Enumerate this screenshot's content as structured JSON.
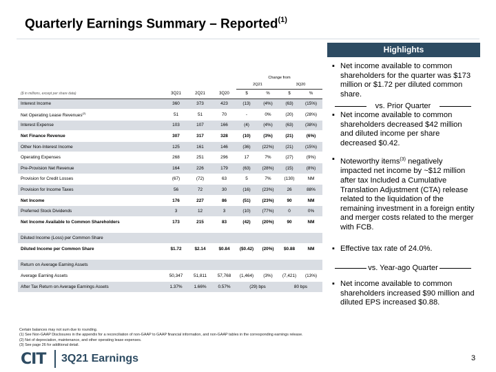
{
  "page": {
    "title": "Quarterly Earnings Summary – Reported",
    "title_sup": "(1)"
  },
  "table": {
    "units_label": "($ in millions, except per share data)",
    "change_from_label": "Change from",
    "group_labels": [
      "2Q21",
      "3Q20"
    ],
    "columns": [
      "3Q21",
      "2Q21",
      "3Q20"
    ],
    "sub_labels": [
      "$",
      "%",
      "$",
      "%"
    ],
    "rows": [
      {
        "label": "Interest Income",
        "sup": "",
        "cells": [
          "360",
          "373",
          "423",
          "(13)",
          "(4%)",
          "(63)",
          "(15%)"
        ],
        "bold": false,
        "shaded": true
      },
      {
        "label": "Net Operating Lease Revenues",
        "sup": "(2)",
        "cells": [
          "51",
          "51",
          "70",
          "-",
          "0%",
          "(20)",
          "(28%)"
        ],
        "bold": false,
        "shaded": false
      },
      {
        "label": "Interest Expense",
        "sup": "",
        "cells": [
          "103",
          "107",
          "166",
          "(4)",
          "(4%)",
          "(63)",
          "(38%)"
        ],
        "bold": false,
        "shaded": true
      },
      {
        "label": "Net Finance Revenue",
        "sup": "",
        "cells": [
          "307",
          "317",
          "328",
          "(10)",
          "(3%)",
          "(21)",
          "(6%)"
        ],
        "bold": true,
        "shaded": false
      },
      {
        "label": "Other Non-Interest Income",
        "sup": "",
        "cells": [
          "125",
          "161",
          "146",
          "(36)",
          "(22%)",
          "(21)",
          "(15%)"
        ],
        "bold": false,
        "shaded": true
      },
      {
        "label": "Operating Expenses",
        "sup": "",
        "cells": [
          "268",
          "251",
          "296",
          "17",
          "7%",
          "(27)",
          "(9%)"
        ],
        "bold": false,
        "shaded": false
      },
      {
        "label": "Pre-Provision Net Revenue",
        "sup": "",
        "cells": [
          "164",
          "226",
          "179",
          "(63)",
          "(28%)",
          "(15)",
          "(8%)"
        ],
        "bold": false,
        "shaded": true
      },
      {
        "label": "Provision for Credit Losses",
        "sup": "",
        "cells": [
          "(67)",
          "(72)",
          "63",
          "5",
          "7%",
          "(130)",
          "NM"
        ],
        "bold": false,
        "shaded": false
      },
      {
        "label": "Provision for Income Taxes",
        "sup": "",
        "cells": [
          "56",
          "72",
          "30",
          "(16)",
          "(23%)",
          "26",
          "88%"
        ],
        "bold": false,
        "shaded": true
      },
      {
        "label": "Net Income",
        "sup": "",
        "cells": [
          "176",
          "227",
          "86",
          "(51)",
          "(23%)",
          "90",
          "NM"
        ],
        "bold": true,
        "shaded": false
      },
      {
        "label": "Preferred Stock Dividends",
        "sup": "",
        "cells": [
          "3",
          "12",
          "3",
          "(10)",
          "(77%)",
          "0",
          "0%"
        ],
        "bold": false,
        "shaded": true
      },
      {
        "label": "Net Income Available to Common Shareholders",
        "sup": "",
        "cells": [
          "173",
          "215",
          "83",
          "(42)",
          "(20%)",
          "90",
          "NM"
        ],
        "bold": true,
        "shaded": false
      }
    ],
    "eps_header": "Diluted Income (Loss) per Common Share",
    "eps_row": {
      "label": "Diluted Income per Common Share",
      "cells": [
        "$1.72",
        "$2.14",
        "$0.84",
        "($0.42)",
        "(20%)",
        "$0.88",
        "NM"
      ]
    },
    "roa_header": "Return on Average Earning Assets",
    "roa_rows": [
      {
        "label": "Average Earning Assets",
        "cells": [
          "50,347",
          "51,811",
          "57,768",
          "(1,464)",
          "(3%)",
          "(7,421)",
          "(13%)"
        ]
      },
      {
        "label": "After Tax Return on Average Earnings Assets",
        "cells": [
          "1.37%",
          "1.66%",
          "0.57%",
          "(29) bps",
          "80 bps"
        ]
      }
    ]
  },
  "footnotes": [
    "Certain balances may not sum due to rounding.",
    "(1)   See Non-GAAP Disclosures in the appendix for a reconciliation of non-GAAP to GAAP financial information, and non-GAAP tables in the corresponding earnings release.",
    "(2)   Net of depreciation, maintenance, and other operating lease expenses.",
    "(3)   See page 26 for additional detail."
  ],
  "highlights": {
    "header": "Highlights",
    "bullet1": "Net income available to common shareholders for the quarter was $173 million or $1.72 per diluted common share.",
    "divider1": "vs. Prior Quarter",
    "bullet2": "Net income available to common shareholders decreased $42 million and diluted income per share decreased $0.42.",
    "bullet3_a": "Noteworthy items",
    "bullet3_sup": "(3)",
    "bullet3_b": " negatively impacted net income by ~$12 million after tax Included a Cumulative Translation Adjustment (CTA) release related to the liquidation of the remaining investment in a foreign entity and merger costs related to the merger with FCB.",
    "bullet4": "Effective tax rate of 24.0%.",
    "divider2": "vs. Year-ago Quarter",
    "bullet5": "Net income available to common shareholders increased $90 million and diluted EPS increased $0.88."
  },
  "footer": {
    "logo_text": "CIT",
    "title": "3Q21 Earnings",
    "page_number": "3"
  },
  "colors": {
    "brand_navy": "#2d4b62",
    "row_shade": "#d9dde3"
  }
}
